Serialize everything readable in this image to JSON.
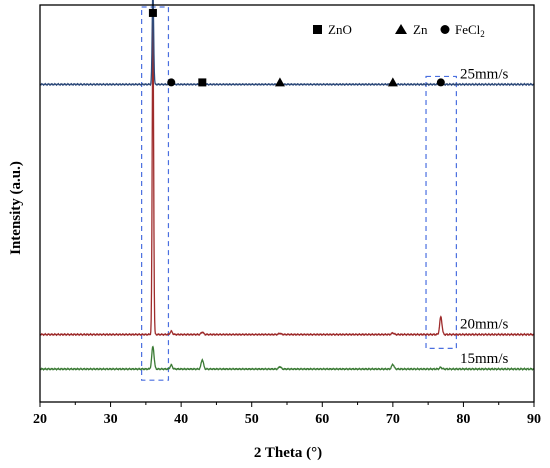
{
  "chart_data": {
    "type": "line",
    "xlabel": "2 Theta (°)",
    "ylabel": "Intensity (a.u.)",
    "xlim": [
      20,
      90
    ],
    "x_ticks": [
      "20",
      "30",
      "40",
      "50",
      "60",
      "70",
      "80",
      "90"
    ],
    "y_ticks_labeled": false,
    "legend": {
      "placement": "top-right",
      "entries": [
        {
          "marker": "square",
          "label": "ZnO"
        },
        {
          "marker": "triangle",
          "label": "Zn"
        },
        {
          "marker": "circle",
          "label": "FeCl",
          "label_subscript": "2"
        }
      ]
    },
    "series": [
      {
        "name": "25mm/s",
        "color": "#2e4a7a",
        "baseline": 0.8,
        "peaks": [
          {
            "x": 36.0,
            "h": 0.24
          },
          {
            "x": 38.6,
            "h": 0.006
          },
          {
            "x": 43.0,
            "h": 0.008
          },
          {
            "x": 54.0,
            "h": 0.005
          },
          {
            "x": 70.0,
            "h": 0.008
          },
          {
            "x": 76.8,
            "h": 0.005
          }
        ]
      },
      {
        "name": "20mm/s",
        "color": "#9e2c2c",
        "baseline": 0.17,
        "peaks": [
          {
            "x": 36.0,
            "h": 0.8
          },
          {
            "x": 38.6,
            "h": 0.008
          },
          {
            "x": 43.0,
            "h": 0.006
          },
          {
            "x": 54.0,
            "h": 0.003
          },
          {
            "x": 70.0,
            "h": 0.004
          },
          {
            "x": 76.8,
            "h": 0.045
          }
        ]
      },
      {
        "name": "15mm/s",
        "color": "#3a7a34",
        "baseline": 0.083,
        "peaks": [
          {
            "x": 36.0,
            "h": 0.057
          },
          {
            "x": 38.6,
            "h": 0.01
          },
          {
            "x": 43.0,
            "h": 0.024
          },
          {
            "x": 54.0,
            "h": 0.006
          },
          {
            "x": 70.0,
            "h": 0.012
          },
          {
            "x": 76.8,
            "h": 0.004
          }
        ]
      }
    ],
    "markers": [
      {
        "type": "square",
        "x": 36.0,
        "y": 0.98
      },
      {
        "type": "circle",
        "x": 38.6,
        "y": 0.805
      },
      {
        "type": "square",
        "x": 43.0,
        "y": 0.805
      },
      {
        "type": "triangle",
        "x": 54.0,
        "y": 0.805
      },
      {
        "type": "triangle",
        "x": 70.0,
        "y": 0.805
      },
      {
        "type": "circle",
        "x": 76.8,
        "y": 0.805
      }
    ],
    "highlight_boxes": [
      {
        "x_range": [
          34.4,
          38.2
        ],
        "y_range": [
          0.055,
          0.995
        ]
      },
      {
        "x_range": [
          74.7,
          79.0
        ],
        "y_range": [
          0.135,
          0.82
        ]
      }
    ]
  }
}
